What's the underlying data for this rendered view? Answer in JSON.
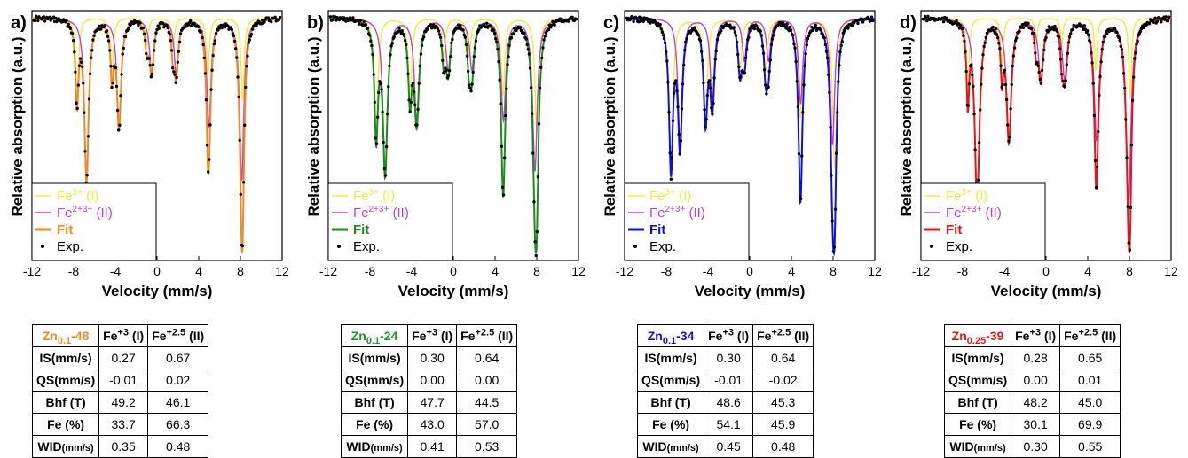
{
  "axes": {
    "xlabel": "Velocity (mm/s)",
    "ylabel": "Relative absorption (a.u.)",
    "xlim": [
      -12,
      12
    ],
    "xticks": [
      "-12",
      "-8",
      "-4",
      "0",
      "4",
      "8",
      "12"
    ]
  },
  "legend": {
    "fe3": "Fe",
    "fe3_sup": "3+",
    "fe3_suffix": " (I)",
    "fe23": "Fe",
    "fe23_sup": "2+3+",
    "fe23_suffix": " (II)",
    "fit": "Fit",
    "exp": "Exp."
  },
  "colors": {
    "fe3": "#f5ea3a",
    "fe23": "#c040c8",
    "exp": "#000000"
  },
  "table_labels": {
    "col1": "Fe",
    "col1_sup": "+3",
    "col1_suffix": " (I)",
    "col2": "Fe",
    "col2_sup": "+2.5",
    "col2_suffix": " (II)",
    "rows": [
      "IS(mm/s)",
      "QS(mm/s)",
      "Bhf (T)",
      "Fe (%)"
    ],
    "wid": "WID",
    "wid_unit": "(mm/s)"
  },
  "chart_data": [
    {
      "type": "line",
      "panel": "a)",
      "fit_color": "#f08a24",
      "sample": {
        "base": "Zn",
        "sub": "0.1",
        "suffix": "-48",
        "color": "#f08a24"
      },
      "table": [
        [
          "0.27",
          "0.67"
        ],
        [
          "-0.01",
          "0.02"
        ],
        [
          "49.2",
          "46.1"
        ],
        [
          "33.7",
          "66.3"
        ],
        [
          "0.35",
          "0.48"
        ]
      ],
      "sextets": [
        {
          "name": "Fe3+ (I)",
          "IS": 0.27,
          "QS": -0.01,
          "Bhf": 49.2,
          "area": 33.7,
          "width": 0.35
        },
        {
          "name": "Fe2+3+ (II)",
          "IS": 0.67,
          "QS": 0.02,
          "Bhf": 46.1,
          "area": 66.3,
          "width": 0.48
        }
      ]
    },
    {
      "type": "line",
      "panel": "b)",
      "fit_color": "#1a8c1a",
      "sample": {
        "base": "Zn",
        "sub": "0.1",
        "suffix": "-24",
        "color": "#1a9a1a"
      },
      "table": [
        [
          "0.30",
          "0.64"
        ],
        [
          "0.00",
          "0.00"
        ],
        [
          "47.7",
          "44.5"
        ],
        [
          "43.0",
          "57.0"
        ],
        [
          "0.41",
          "0.53"
        ]
      ],
      "sextets": [
        {
          "name": "Fe3+ (I)",
          "IS": 0.3,
          "QS": 0.0,
          "Bhf": 47.7,
          "area": 43.0,
          "width": 0.41
        },
        {
          "name": "Fe2+3+ (II)",
          "IS": 0.64,
          "QS": 0.0,
          "Bhf": 44.5,
          "area": 57.0,
          "width": 0.53
        }
      ]
    },
    {
      "type": "line",
      "panel": "c)",
      "fit_color": "#1010d8",
      "sample": {
        "base": "Zn",
        "sub": "0.1",
        "suffix": "-34",
        "color": "#1010d8"
      },
      "table": [
        [
          "0.30",
          "0.64"
        ],
        [
          "-0.01",
          "-0.02"
        ],
        [
          "48.6",
          "45.3"
        ],
        [
          "54.1",
          "45.9"
        ],
        [
          "0.45",
          "0.48"
        ]
      ],
      "sextets": [
        {
          "name": "Fe3+ (I)",
          "IS": 0.3,
          "QS": -0.01,
          "Bhf": 48.6,
          "area": 54.1,
          "width": 0.45
        },
        {
          "name": "Fe2+3+ (II)",
          "IS": 0.64,
          "QS": -0.02,
          "Bhf": 45.3,
          "area": 45.9,
          "width": 0.48
        }
      ]
    },
    {
      "type": "line",
      "panel": "d)",
      "fit_color": "#e01818",
      "sample": {
        "base": "Zn",
        "sub": "0.25",
        "suffix": "-39",
        "color": "#e01818"
      },
      "table": [
        [
          "0.28",
          "0.65"
        ],
        [
          "0.00",
          "0.01"
        ],
        [
          "48.2",
          "45.0"
        ],
        [
          "30.1",
          "69.9"
        ],
        [
          "0.30",
          "0.55"
        ]
      ],
      "sextets": [
        {
          "name": "Fe3+ (I)",
          "IS": 0.28,
          "QS": 0.0,
          "Bhf": 48.2,
          "area": 30.1,
          "width": 0.3
        },
        {
          "name": "Fe2+3+ (II)",
          "IS": 0.65,
          "QS": 0.01,
          "Bhf": 45.0,
          "area": 69.9,
          "width": 0.55
        }
      ]
    }
  ]
}
